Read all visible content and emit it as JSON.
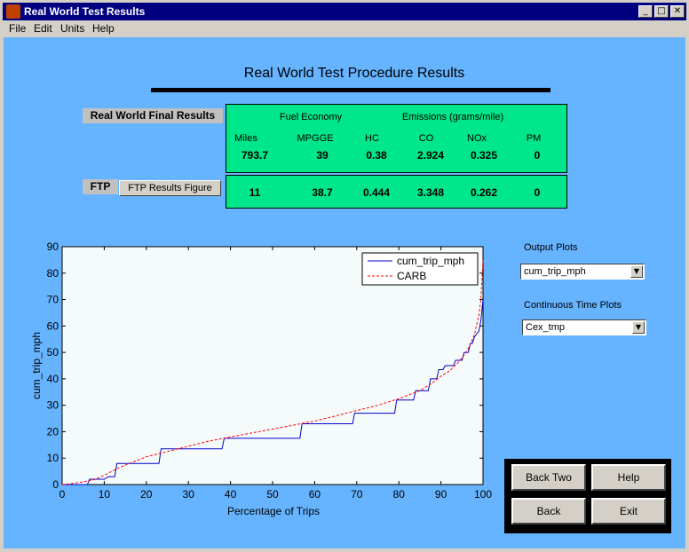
{
  "window": {
    "title": "Real World Test Results"
  },
  "menu": [
    "File",
    "Edit",
    "Units",
    "Help"
  ],
  "heading": "Real World Test Procedure Results",
  "final_results": {
    "label": "Real World Final Results",
    "group_fuel": "Fuel Economy",
    "group_emissions": "Emissions (grams/mile)",
    "headers": [
      "Miles",
      "MPGGE",
      "HC",
      "CO",
      "NOx",
      "PM"
    ],
    "values": [
      "793.7",
      "39",
      "0.38",
      "2.924",
      "0.325",
      "0"
    ]
  },
  "ftp": {
    "label": "FTP",
    "button": "FTP Results Figure",
    "values": [
      "11",
      "38.7",
      "0.444",
      "3.348",
      "0.262",
      "0"
    ]
  },
  "output_plots": {
    "label": "Output Plots",
    "selected": "cum_trip_mph"
  },
  "continuous_plots": {
    "label": "Continuous Time Plots",
    "selected": "Cex_tmp"
  },
  "buttons": {
    "back_two": "Back Two",
    "help": "Help",
    "back": "Back",
    "exit": "Exit"
  },
  "colors": {
    "background": "#66b3ff",
    "results_panel": "#00e68a",
    "plot_area": "#f5fbfb",
    "series_blue": "#0000cc",
    "series_red": "#ff0000"
  },
  "chart_data": {
    "type": "line",
    "xlabel": "Percentage of Trips",
    "ylabel": "cum_trip_mph",
    "xlim": [
      0,
      100
    ],
    "ylim": [
      0,
      90
    ],
    "xticks": [
      0,
      10,
      20,
      30,
      40,
      50,
      60,
      70,
      80,
      90,
      100
    ],
    "yticks": [
      0,
      10,
      20,
      30,
      40,
      50,
      60,
      70,
      80,
      90
    ],
    "grid": false,
    "legend_position": "top-right",
    "series": [
      {
        "name": "cum_trip_mph",
        "style": "solid",
        "color": "#0000cc",
        "x": [
          0,
          6,
          6.5,
          10,
          11,
          12.5,
          13,
          23,
          23.5,
          38,
          38.5,
          56.5,
          57,
          69,
          69.5,
          79,
          79.5,
          83.5,
          84,
          87,
          87.5,
          89,
          89.5,
          90.5,
          91,
          93,
          93.5,
          95,
          95.5,
          96.5,
          97,
          97.5,
          98,
          99,
          99.5,
          100
        ],
        "y": [
          0,
          0,
          2,
          2,
          3,
          3,
          8,
          8,
          13.5,
          13.5,
          17.5,
          17.5,
          23,
          23,
          27,
          27,
          32,
          32,
          35.5,
          35.5,
          40,
          40,
          43.5,
          43.5,
          45,
          45,
          47,
          47,
          50,
          50,
          53.5,
          53.5,
          56,
          58,
          62,
          70
        ]
      },
      {
        "name": "CARB",
        "style": "dashed",
        "color": "#ff0000",
        "x": [
          0,
          2,
          5,
          8,
          10,
          13,
          16,
          20,
          25,
          30,
          35,
          40,
          45,
          50,
          55,
          60,
          65,
          70,
          75,
          80,
          85,
          88,
          90,
          92,
          94,
          95,
          96,
          97,
          98,
          99,
          99.5,
          100
        ],
        "y": [
          0,
          0.3,
          1,
          2,
          3.5,
          6,
          8,
          10.5,
          12.5,
          14.5,
          16.5,
          18,
          19.5,
          21,
          22.5,
          24,
          26,
          28,
          30,
          32.5,
          35.5,
          38.5,
          41,
          43,
          46,
          48,
          50,
          53,
          57,
          64,
          70,
          85
        ]
      }
    ]
  }
}
